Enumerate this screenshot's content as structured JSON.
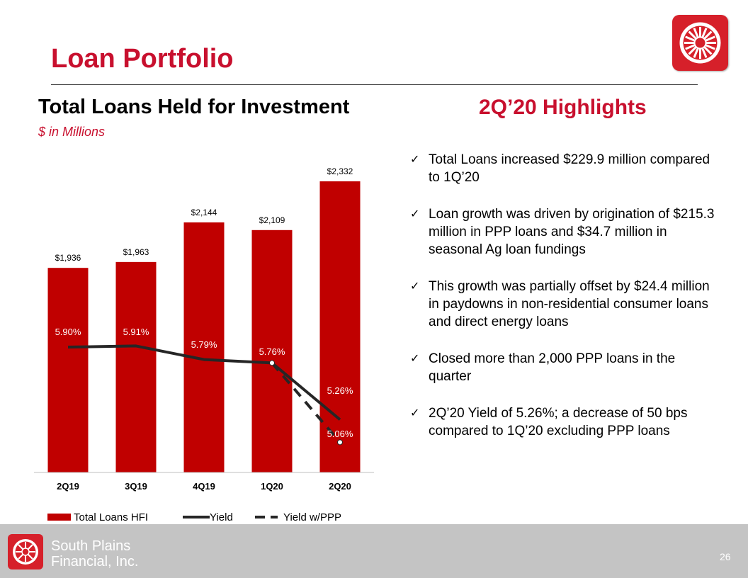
{
  "page": {
    "title": "Loan Portfolio",
    "page_number": "26",
    "brand_color": "#c8102e"
  },
  "chart_section": {
    "title": "Total Loans Held for Investment",
    "subtitle": "$ in Millions"
  },
  "highlights": {
    "title": "2Q’20 Highlights",
    "items": [
      "Total Loans increased $229.9 million compared to 1Q’20",
      "Loan growth was driven by origination of $215.3 million in PPP loans and $34.7 million in seasonal Ag loan fundings",
      "This growth was partially offset by $24.4 million in paydowns in non-residential consumer loans and direct energy loans",
      "Closed more than 2,000 PPP loans in the quarter",
      "2Q’20 Yield of 5.26%; a decrease of 50 bps compared to 1Q’20 excluding PPP loans"
    ],
    "bullet_icon": "check-icon"
  },
  "chart_data": {
    "type": "bar",
    "categories": [
      "2Q19",
      "3Q19",
      "4Q19",
      "1Q20",
      "2Q20"
    ],
    "series": [
      {
        "name": "Total Loans HFI",
        "type": "bar",
        "values": [
          1936,
          1963,
          2144,
          2109,
          2332
        ],
        "labels": [
          "$1,936",
          "$1,963",
          "$2,144",
          "$2,109",
          "$2,332"
        ],
        "color": "#c00000"
      },
      {
        "name": "Yield",
        "type": "line",
        "values": [
          5.9,
          5.91,
          5.79,
          5.76,
          5.26
        ],
        "labels": [
          "5.90%",
          "5.91%",
          "5.79%",
          "5.76%",
          "5.26%"
        ],
        "color": "#262626"
      },
      {
        "name": "Yield w/PPP",
        "type": "line",
        "style": "dashed",
        "values": [
          null,
          null,
          null,
          5.76,
          5.06
        ],
        "labels": [
          "",
          "",
          "",
          "",
          "5.06%"
        ],
        "color": "#262626"
      }
    ],
    "legend_position": "bottom",
    "grid": false
  },
  "footer": {
    "company_line1": "South Plains",
    "company_line2": "Financial, Inc.",
    "background": "#c4c4c4"
  }
}
